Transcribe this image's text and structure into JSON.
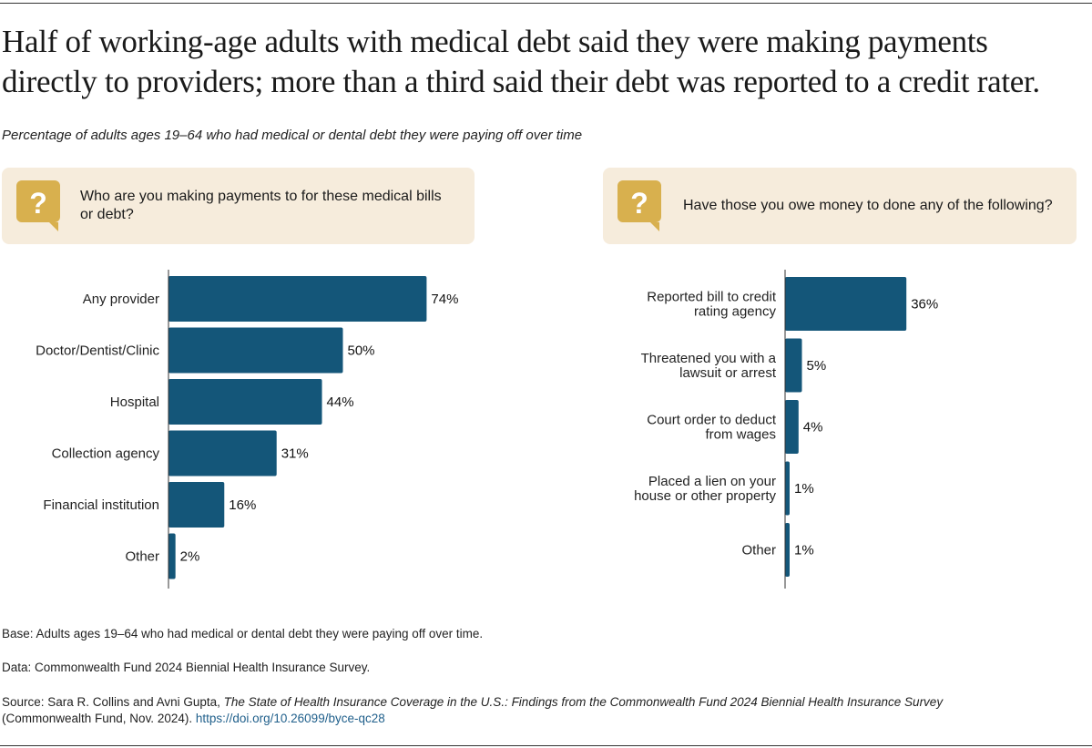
{
  "title": "Half of working-age adults with medical debt said they were making payments directly to providers; more than a third said their debt was reported to a credit rater.",
  "subtitle": "Percentage of adults ages 19–64 who had medical or dental debt they were paying off over time",
  "colors": {
    "bar": "#145679",
    "question_bg": "#f6ecdc",
    "question_icon": "#d8b04e"
  },
  "chart_data": [
    {
      "type": "bar",
      "orientation": "horizontal",
      "question": "Who are you making payments to for these medical bills or debt?",
      "icon": "question-speech-bubble-icon",
      "categories": [
        "Any provider",
        "Doctor/Dentist/Clinic",
        "Hospital",
        "Collection agency",
        "Financial institution",
        "Other"
      ],
      "values": [
        74,
        50,
        44,
        31,
        16,
        2
      ],
      "value_labels": [
        "74%",
        "50%",
        "44%",
        "31%",
        "16%",
        "2%"
      ],
      "unit": "%",
      "xlim": [
        0,
        100
      ]
    },
    {
      "type": "bar",
      "orientation": "horizontal",
      "question": "Have those you owe money to done any of the following?",
      "icon": "question-speech-bubble-icon",
      "categories": [
        [
          "Reported bill to credit",
          "rating agency"
        ],
        [
          "Threatened you with a",
          "lawsuit or arrest"
        ],
        [
          "Court order to deduct",
          "from wages"
        ],
        [
          "Placed a lien on your",
          "house or other property"
        ],
        [
          "Other"
        ]
      ],
      "values": [
        36,
        5,
        4,
        1,
        1
      ],
      "value_labels": [
        "36%",
        "5%",
        "4%",
        "1%",
        "1%"
      ],
      "unit": "%",
      "xlim": [
        0,
        100
      ]
    }
  ],
  "footnotes": {
    "base": "Base: Adults ages 19–64 who had medical or dental debt they were paying off over time.",
    "data": "Data: Commonwealth Fund 2024 Biennial Health Insurance Survey.",
    "source_prefix": "Source: Sara R. Collins and Avni Gupta, ",
    "source_title": "The State of Health Insurance Coverage in the U.S.: Findings from the Commonwealth Fund 2024 Biennial Health Insurance Survey",
    "source_suffix": "(Commonwealth Fund, Nov. 2024). ",
    "source_link": "https://doi.org/10.26099/byce-qc28"
  }
}
